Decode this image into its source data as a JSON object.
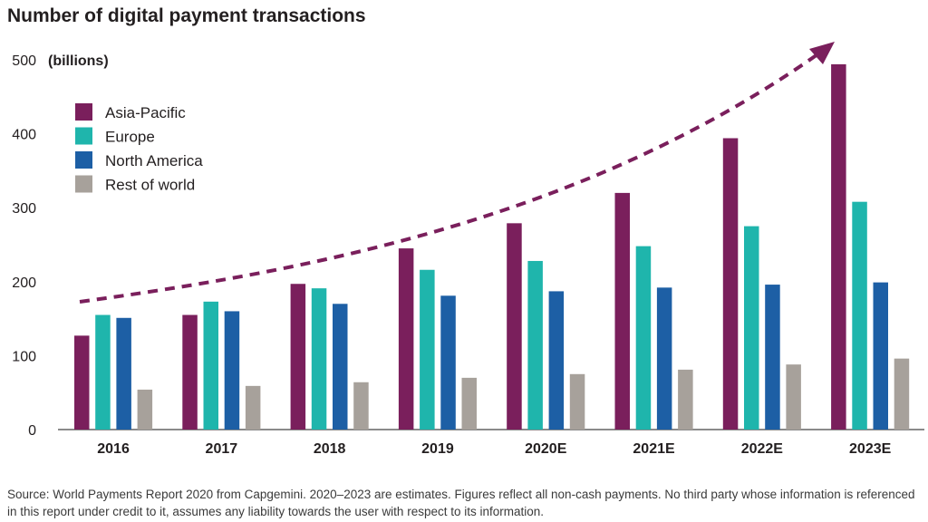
{
  "title": "Number of digital payment transactions",
  "source": "Source: World Payments Report 2020 from Capgemini. 2020–2023 are estimates. Figures reflect all non-cash payments. No third party whose information is referenced in this report under credit to it, assumes any liability towards the user with respect to its information.",
  "chart_data": {
    "type": "bar",
    "title": "Number of digital payment transactions",
    "ylabel": "(billions)",
    "xlabel": "",
    "ylim": [
      0,
      500
    ],
    "yticks": [
      0,
      100,
      200,
      300,
      400,
      500
    ],
    "grid": false,
    "legend": "top-left",
    "categories": [
      "2016",
      "2017",
      "2018",
      "2019",
      "2020E",
      "2021E",
      "2022E",
      "2023E"
    ],
    "series": [
      {
        "name": "Asia-Pacific",
        "color": "#7a1f5c",
        "values": [
          127,
          155,
          197,
          245,
          279,
          320,
          394,
          494
        ]
      },
      {
        "name": "Europe",
        "color": "#1fb5ac",
        "values": [
          155,
          173,
          191,
          216,
          228,
          248,
          275,
          308
        ]
      },
      {
        "name": "North America",
        "color": "#1d5fa5",
        "values": [
          151,
          160,
          170,
          181,
          187,
          192,
          196,
          199
        ]
      },
      {
        "name": "Rest of world",
        "color": "#a7a19b",
        "values": [
          54,
          59,
          64,
          70,
          75,
          81,
          88,
          96
        ]
      }
    ],
    "trend_arrow": {
      "color": "#7a1f5c",
      "style": "dashed",
      "direction": "up-right"
    }
  }
}
